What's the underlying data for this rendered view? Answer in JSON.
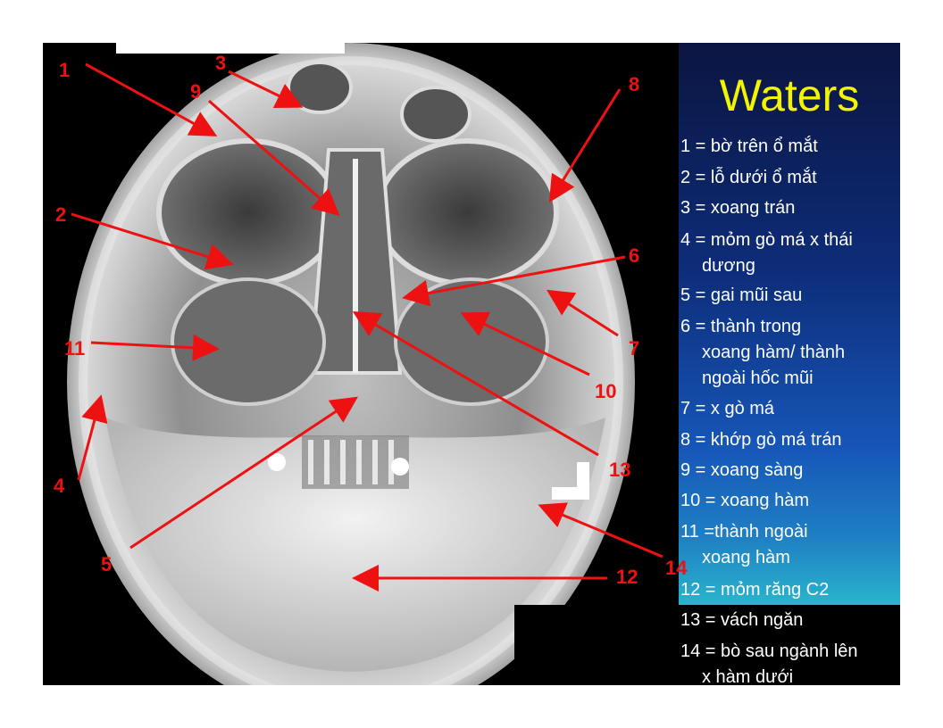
{
  "title": "Waters",
  "legend": [
    {
      "lines": [
        "1 = bờ trên ổ mắt"
      ]
    },
    {
      "lines": [
        "2 = lỗ dưới ổ mắt"
      ]
    },
    {
      "lines": [
        "3 = xoang trán"
      ]
    },
    {
      "lines": [
        "4 =  mỏm gò má x thái",
        "dương"
      ]
    },
    {
      "lines": [
        "5 = gai mũi sau"
      ]
    },
    {
      "lines": [
        "6 =  thành trong",
        "xoang hàm/ thành",
        "ngoài hốc mũi"
      ]
    },
    {
      "lines": [
        "7 = x gò má"
      ]
    },
    {
      "lines": [
        "8 = khớp gò má trán"
      ]
    },
    {
      "lines": [
        "9 = xoang sàng"
      ]
    },
    {
      "lines": [
        "10 = xoang hàm"
      ]
    },
    {
      "lines": [
        "11 =thành ngoài",
        "xoang hàm"
      ]
    },
    {
      "lines": [
        "12 = mỏm răng C2"
      ]
    },
    {
      "lines": [
        "13 = vách ngăn"
      ]
    },
    {
      "lines": [
        "14 = bò sau ngành lên",
        "x hàm dưới"
      ]
    }
  ],
  "markers": [
    "1",
    "2",
    "3",
    "4",
    "5",
    "6",
    "7",
    "8",
    "9",
    "10",
    "11",
    "12",
    "13",
    "14"
  ],
  "colors": {
    "marker": "#ee1111",
    "title": "#f4f400",
    "legend_text": "#ffffff"
  }
}
